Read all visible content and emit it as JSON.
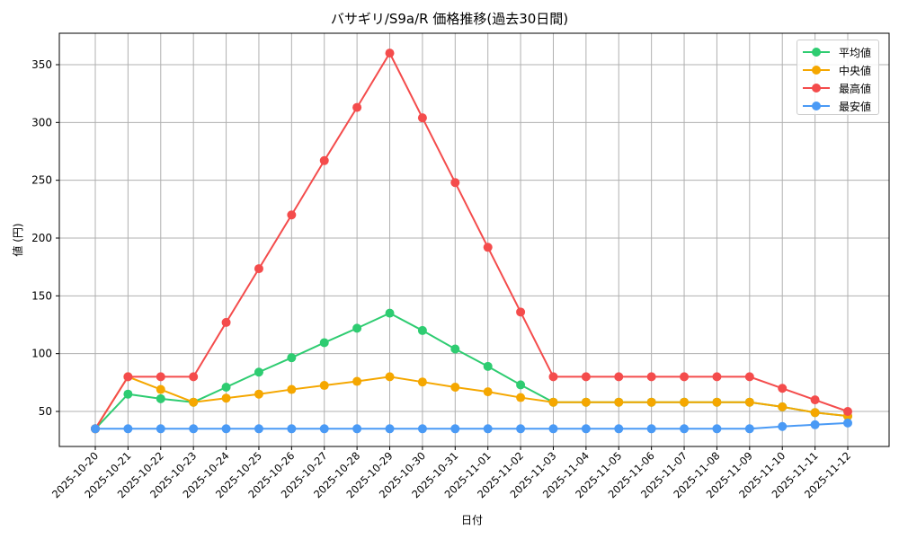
{
  "chart_data": {
    "type": "line",
    "title": "バサギリ/S9a/R 価格推移(過去30日間)",
    "xlabel": "日付",
    "ylabel": "値 (円)",
    "ylim": [
      20,
      377
    ],
    "yticks": [
      50,
      100,
      150,
      200,
      250,
      300,
      350
    ],
    "grid": true,
    "legend_position": "upper right",
    "categories": [
      "2025-10-20",
      "2025-10-21",
      "2025-10-22",
      "2025-10-23",
      "2025-10-24",
      "2025-10-25",
      "2025-10-26",
      "2025-10-27",
      "2025-10-28",
      "2025-10-29",
      "2025-10-30",
      "2025-10-31",
      "2025-11-01",
      "2025-11-02",
      "2025-11-03",
      "2025-11-04",
      "2025-11-05",
      "2025-11-06",
      "2025-11-07",
      "2025-11-08",
      "2025-11-09",
      "2025-11-10",
      "2025-11-11",
      "2025-11-12"
    ],
    "series": [
      {
        "name": "平均値",
        "color": "#2ecc71",
        "values": [
          35,
          65,
          61,
          58,
          71,
          84,
          96.5,
          109.5,
          122,
          135,
          120,
          104,
          89,
          73,
          58,
          58,
          58,
          58,
          58,
          58,
          58,
          54,
          49,
          46
        ]
      },
      {
        "name": "中央値",
        "color": "#f5a700",
        "values": [
          35,
          80,
          69,
          58,
          61.5,
          65,
          69,
          72.5,
          76,
          80,
          75.5,
          71,
          67,
          62,
          58,
          58,
          58,
          58,
          58,
          58,
          58,
          54,
          49,
          46
        ]
      },
      {
        "name": "最高値",
        "color": "#f44c4c",
        "values": [
          35,
          80,
          80,
          80,
          127,
          173.5,
          220,
          267,
          313,
          360,
          304,
          248,
          192,
          136,
          80,
          80,
          80,
          80,
          80,
          80,
          80,
          70,
          60,
          50
        ]
      },
      {
        "name": "最安値",
        "color": "#4a9af5",
        "values": [
          35,
          35,
          35,
          35,
          35,
          35,
          35,
          35,
          35,
          35,
          35,
          35,
          35,
          35,
          35,
          35,
          35,
          35,
          35,
          35,
          35,
          37,
          38.5,
          40
        ]
      }
    ]
  }
}
